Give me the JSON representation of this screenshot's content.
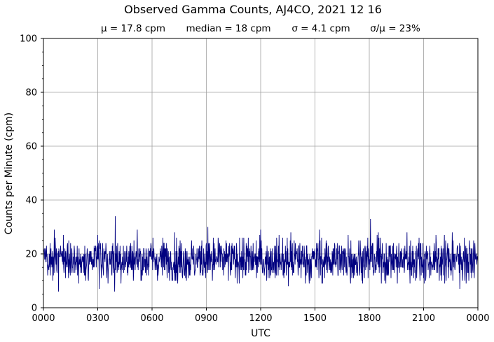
{
  "chart_data": {
    "type": "line",
    "title": "Observed Gamma Counts, AJ4CO, 2021 12 16",
    "subtitle_stats": [
      "μ = 17.8 cpm",
      "median = 18 cpm",
      "σ = 4.1 cpm",
      "σ/μ = 23%"
    ],
    "xlabel": "UTC",
    "ylabel": "Counts per Minute (cpm)",
    "xlim": [
      0,
      1440
    ],
    "ylim": [
      0,
      100
    ],
    "x_ticks": [
      0,
      180,
      360,
      540,
      720,
      900,
      1080,
      1260,
      1440
    ],
    "x_tick_labels": [
      "0000",
      "0300",
      "0600",
      "0900",
      "1200",
      "1500",
      "1800",
      "2100",
      "0000"
    ],
    "y_ticks": [
      0,
      20,
      40,
      60,
      80,
      100
    ],
    "y_tick_labels": [
      "0",
      "20",
      "40",
      "60",
      "80",
      "100"
    ],
    "grid": true,
    "line_color": "#000080",
    "series": [
      {
        "x_unit": "minutes after 0000 UTC",
        "baseline_mean": 17.8,
        "baseline_sd": 4.1,
        "points": [
          {
            "x": 0,
            "y": 18
          },
          {
            "x": 6,
            "y": 22
          },
          {
            "x": 14,
            "y": 12
          },
          {
            "x": 22,
            "y": 24
          },
          {
            "x": 31,
            "y": 10
          },
          {
            "x": 36,
            "y": 29
          },
          {
            "x": 44,
            "y": 14
          },
          {
            "x": 50,
            "y": 6
          },
          {
            "x": 58,
            "y": 20
          },
          {
            "x": 66,
            "y": 27
          },
          {
            "x": 78,
            "y": 16
          },
          {
            "x": 90,
            "y": 24
          },
          {
            "x": 104,
            "y": 13
          },
          {
            "x": 118,
            "y": 22
          },
          {
            "x": 140,
            "y": 10
          },
          {
            "x": 158,
            "y": 21
          },
          {
            "x": 180,
            "y": 27
          },
          {
            "x": 185,
            "y": 7
          },
          {
            "x": 200,
            "y": 22
          },
          {
            "x": 216,
            "y": 15
          },
          {
            "x": 230,
            "y": 24
          },
          {
            "x": 236,
            "y": 6
          },
          {
            "x": 238,
            "y": 34
          },
          {
            "x": 250,
            "y": 14
          },
          {
            "x": 265,
            "y": 23
          },
          {
            "x": 280,
            "y": 12
          },
          {
            "x": 296,
            "y": 21
          },
          {
            "x": 311,
            "y": 29
          },
          {
            "x": 325,
            "y": 10
          },
          {
            "x": 340,
            "y": 22
          },
          {
            "x": 363,
            "y": 26
          },
          {
            "x": 380,
            "y": 12
          },
          {
            "x": 400,
            "y": 24
          },
          {
            "x": 420,
            "y": 15
          },
          {
            "x": 445,
            "y": 9
          },
          {
            "x": 470,
            "y": 22
          },
          {
            "x": 500,
            "y": 14
          },
          {
            "x": 525,
            "y": 25
          },
          {
            "x": 545,
            "y": 30
          },
          {
            "x": 560,
            "y": 10
          },
          {
            "x": 590,
            "y": 23
          },
          {
            "x": 620,
            "y": 12
          },
          {
            "x": 650,
            "y": 26
          },
          {
            "x": 690,
            "y": 14
          },
          {
            "x": 720,
            "y": 29
          },
          {
            "x": 740,
            "y": 10
          },
          {
            "x": 770,
            "y": 23
          },
          {
            "x": 800,
            "y": 13
          },
          {
            "x": 820,
            "y": 28
          },
          {
            "x": 812,
            "y": 8
          },
          {
            "x": 850,
            "y": 24
          },
          {
            "x": 880,
            "y": 12
          },
          {
            "x": 915,
            "y": 29
          },
          {
            "x": 925,
            "y": 9
          },
          {
            "x": 960,
            "y": 22
          },
          {
            "x": 990,
            "y": 14
          },
          {
            "x": 1010,
            "y": 27
          },
          {
            "x": 1040,
            "y": 12
          },
          {
            "x": 1070,
            "y": 21
          },
          {
            "x": 1084,
            "y": 33
          },
          {
            "x": 1100,
            "y": 13
          },
          {
            "x": 1110,
            "y": 28
          },
          {
            "x": 1120,
            "y": 9
          },
          {
            "x": 1150,
            "y": 23
          },
          {
            "x": 1180,
            "y": 13
          },
          {
            "x": 1205,
            "y": 28
          },
          {
            "x": 1215,
            "y": 9
          },
          {
            "x": 1245,
            "y": 26
          },
          {
            "x": 1275,
            "y": 14
          },
          {
            "x": 1310,
            "y": 22
          },
          {
            "x": 1330,
            "y": 9
          },
          {
            "x": 1355,
            "y": 28
          },
          {
            "x": 1380,
            "y": 7
          },
          {
            "x": 1395,
            "y": 26
          },
          {
            "x": 1410,
            "y": 10
          },
          {
            "x": 1425,
            "y": 20
          },
          {
            "x": 1440,
            "y": 16
          }
        ]
      }
    ]
  }
}
